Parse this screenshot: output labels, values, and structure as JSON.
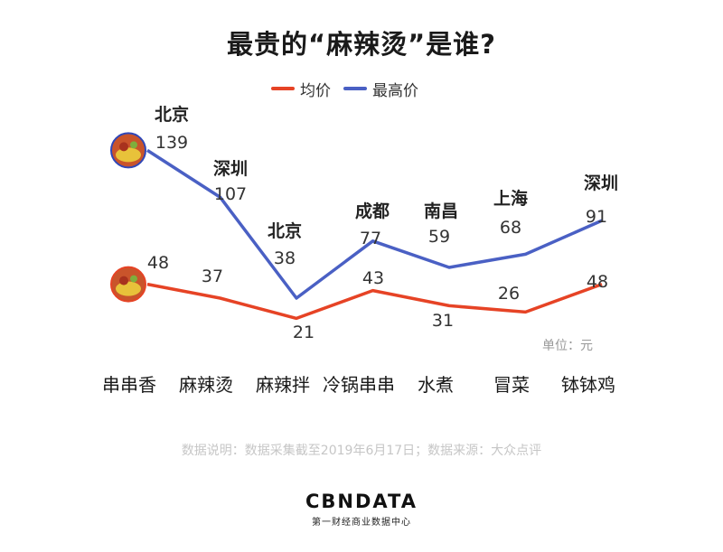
{
  "title": "最贵的“麻辣烫”是谁?",
  "unit": "单位：元",
  "source": "数据说明：数据采集截至2019年6月17日；数据来源：大众点评",
  "logo": {
    "main": "CBNDATA",
    "sub": "第一财经商业数据中心"
  },
  "colors": {
    "avg": "#e64325",
    "max": "#4a60c4"
  },
  "chart_data": {
    "type": "line",
    "categories": [
      "串串香",
      "麻辣烫",
      "麻辣拌",
      "冷锅串串",
      "水煮",
      "冒菜",
      "钵钵鸡"
    ],
    "series": [
      {
        "name": "均价",
        "values": [
          48,
          37,
          21,
          43,
          31,
          26,
          48
        ]
      },
      {
        "name": "最高价",
        "values": [
          139,
          107,
          38,
          77,
          59,
          68,
          91
        ]
      }
    ],
    "max_price_cities": [
      "北京",
      "深圳",
      "北京",
      "成都",
      "南昌",
      "上海",
      "深圳"
    ],
    "legend_position": "top"
  }
}
